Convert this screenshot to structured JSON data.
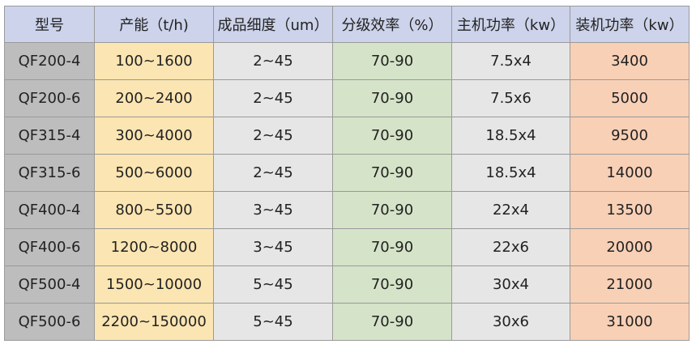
{
  "headers": [
    "型号",
    "产能（t/h)",
    "成品细度（um）",
    "分级效率（%）",
    "主机功率（kw）",
    "装机功率（kw）"
  ],
  "rows": [
    [
      "QF200-4",
      "100~1600",
      "2~45",
      "70-90",
      "7.5x4",
      "3400"
    ],
    [
      "QF200-6",
      "200~2400",
      "2~45",
      "70-90",
      "7.5x6",
      "5000"
    ],
    [
      "QF315-4",
      "300~4000",
      "2~45",
      "70-90",
      "18.5x4",
      "9500"
    ],
    [
      "QF315-6",
      "500~6000",
      "2~45",
      "70-90",
      "18.5x4",
      "14000"
    ],
    [
      "QF400-4",
      "800~5500",
      "3~45",
      "70-90",
      "22x4",
      "13500"
    ],
    [
      "QF400-6",
      "1200~8000",
      "3~45",
      "70-90",
      "22x6",
      "20000"
    ],
    [
      "QF500-4",
      "1500~10000",
      "5~45",
      "70-90",
      "30x4",
      "21000"
    ],
    [
      "QF500-6",
      "2200~150000",
      "5~45",
      "70-90",
      "30x6",
      "31000"
    ]
  ],
  "colors": {
    "header": "#ccd3ea",
    "model": "#bdbdbd",
    "capacity": "#fbe5b2",
    "fineness": "#e6e6e6",
    "efficiency": "#d5e3c8",
    "main_power": "#e6e6e6",
    "installed_power": "#f8d0b6"
  }
}
